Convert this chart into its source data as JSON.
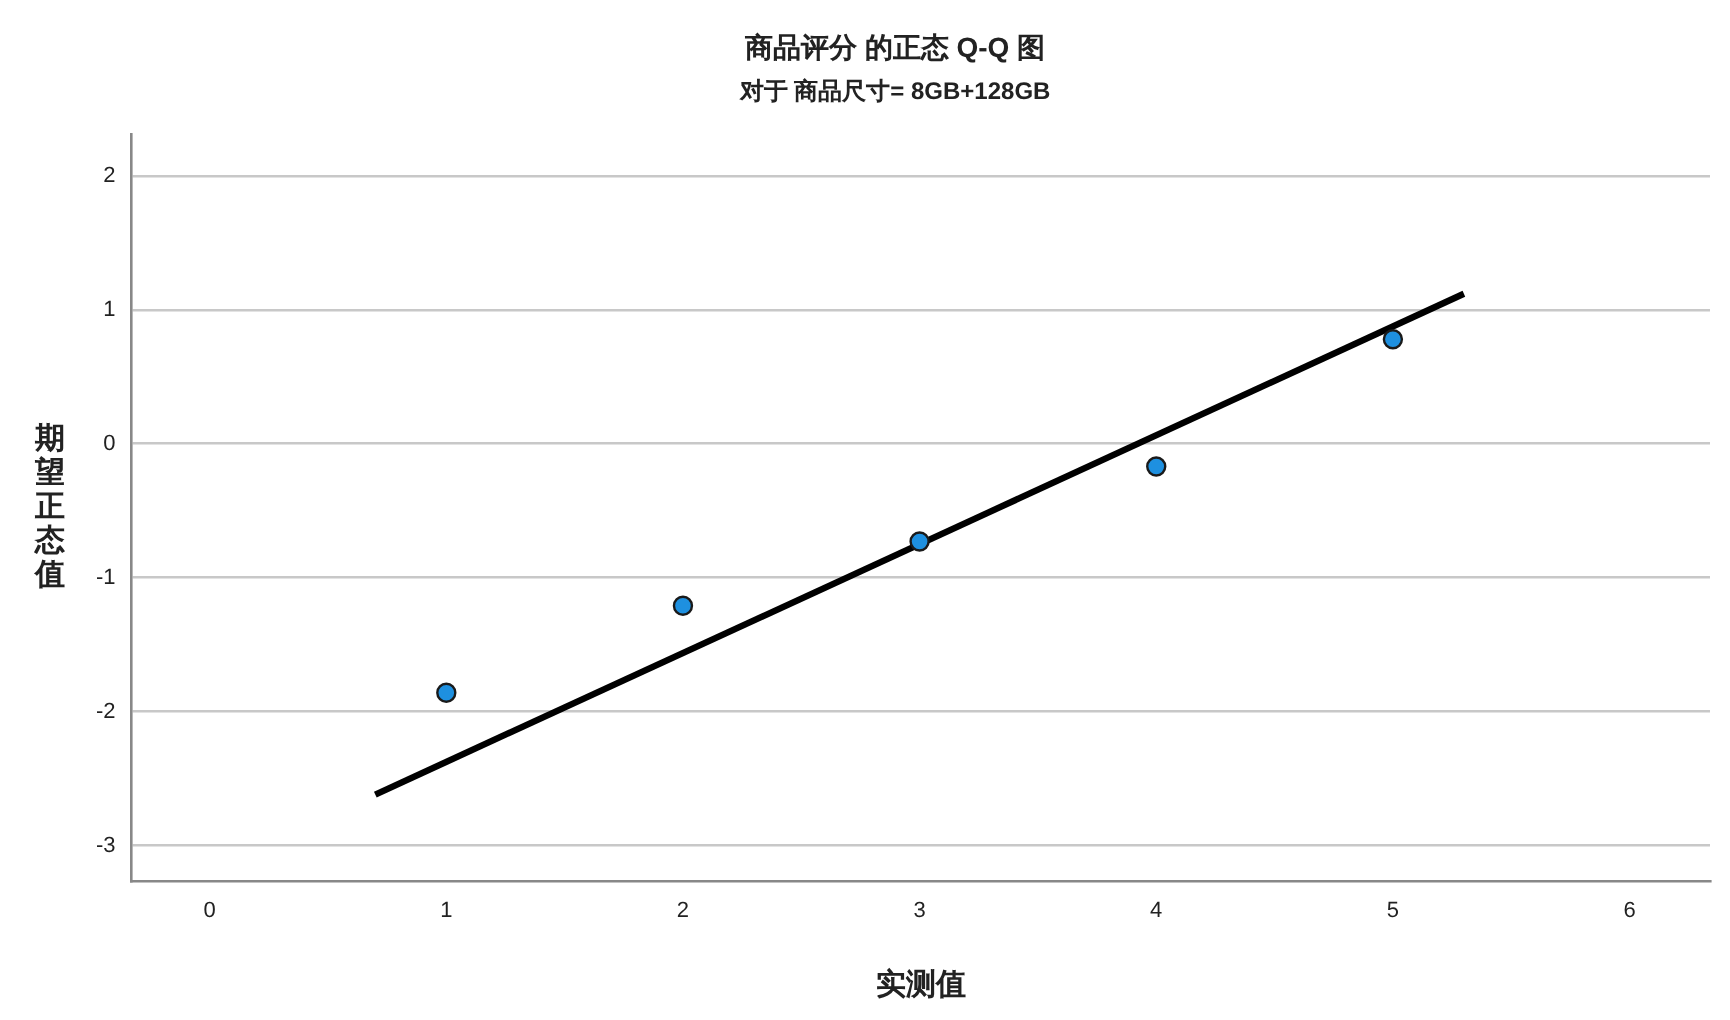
{
  "chart_data": {
    "type": "scatter",
    "title": "商品评分 的正态 Q-Q 图",
    "subtitle": "对于 商品尺寸= 8GB+128GB",
    "xlabel": "实测值",
    "ylabel": "期望正态值",
    "series": [
      {
        "color": "#1e90e0",
        "marker": "circle",
        "x": [
          1,
          2,
          3,
          4,
          5
        ],
        "values": [
          -1.86,
          -1.21,
          -0.73,
          -0.17,
          0.78
        ]
      },
      {
        "type": "line",
        "color": "#000000",
        "marker": "none",
        "x": [
          0.7,
          5.3
        ],
        "values": [
          -2.62,
          1.12
        ]
      }
    ],
    "xlim": [
      -0.33,
      6.34
    ],
    "xticks": [
      0,
      1,
      2,
      3,
      4,
      5,
      6
    ],
    "ylim": [
      -3.27,
      2.31
    ],
    "yticks": [
      -3,
      -2,
      -1,
      0,
      1,
      2
    ],
    "grid": "y",
    "legend": false
  }
}
